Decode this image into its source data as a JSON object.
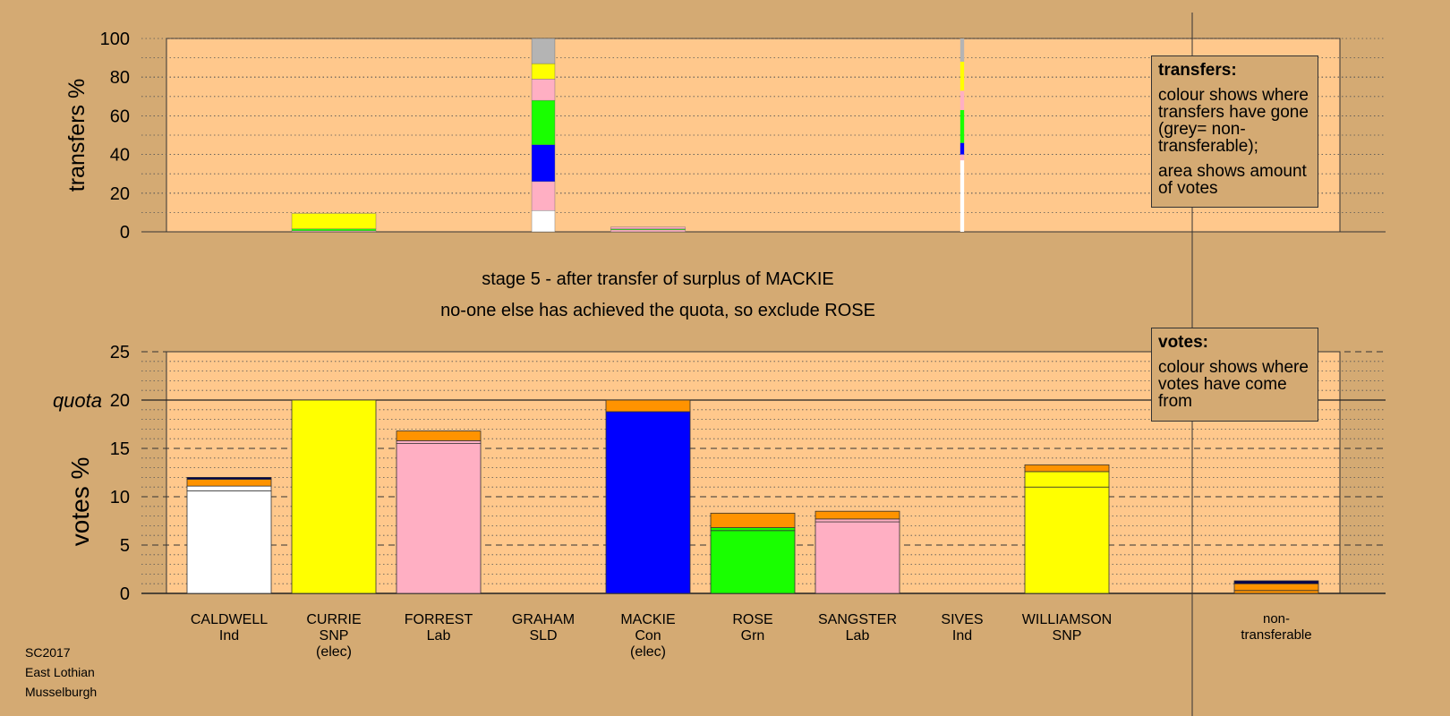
{
  "stage_text": "stage 5 - after transfer of surplus of MACKIE",
  "action_text": "no-one else has achieved the quota, so exclude ROSE",
  "legends": {
    "transfers": {
      "title": "transfers:",
      "line1": "colour shows where transfers have gone (grey= non-transferable);",
      "line2": "area shows amount of votes"
    },
    "votes": {
      "title": "votes:",
      "line1": "colour shows where votes have come from"
    }
  },
  "footer": [
    "SC2017",
    "East Lothian",
    "Musselburgh"
  ],
  "colors": {
    "background": "#d4aa73",
    "plot_bg": "#ffc88c",
    "Ind": "#ffffff",
    "SNP": "#ffff00",
    "Lab": "#ffafc3",
    "Con": "#0000ff",
    "Grn": "#19ff00",
    "transfer": "#ff9300",
    "nontransferable": "#b4b4b4",
    "dark": "#00004d"
  },
  "chart_data": [
    {
      "type": "bar",
      "stacked": true,
      "ylabel": "transfers %",
      "ylim": [
        0,
        100
      ],
      "yticks": [
        0,
        20,
        40,
        60,
        80,
        100
      ],
      "grid": true,
      "note": "transfers from each candidate; bar width shows amount of votes transferred",
      "bars": [
        {
          "candidate": "CURRIE",
          "width_votes_pct": 8.7,
          "segments": [
            {
              "to": "FORREST",
              "value": 0.5,
              "color": "Lab"
            },
            {
              "to": "ROSE",
              "value": 1.0,
              "color": "Grn"
            },
            {
              "to": "WILLIAMSON",
              "value": 8.0,
              "color": "SNP"
            }
          ]
        },
        {
          "candidate": "GRAHAM",
          "width_votes_pct": 2.4,
          "segments": [
            {
              "to": "CALDWELL",
              "value": 11,
              "color": "Ind"
            },
            {
              "to": "FORREST",
              "value": 15,
              "color": "Lab"
            },
            {
              "to": "MACKIE",
              "value": 19,
              "color": "Con"
            },
            {
              "to": "ROSE",
              "value": 23,
              "color": "Grn"
            },
            {
              "to": "SANGSTER",
              "value": 11,
              "color": "Lab"
            },
            {
              "to": "WILLIAMSON",
              "value": 8,
              "color": "SNP"
            },
            {
              "to": "non-transferable",
              "value": 13,
              "color": "nontransferable"
            }
          ]
        },
        {
          "candidate": "MACKIE",
          "width_votes_pct": 7.7,
          "segments": [
            {
              "to": "FORREST",
              "value": 1.0,
              "color": "Lab"
            },
            {
              "to": "ROSE",
              "value": 0.5,
              "color": "Grn"
            },
            {
              "to": "SANGSTER",
              "value": 1.0,
              "color": "Lab"
            }
          ]
        },
        {
          "candidate": "SIVES",
          "width_votes_pct": 0.4,
          "segments": [
            {
              "to": "CALDWELL",
              "value": 37,
              "color": "Ind"
            },
            {
              "to": "FORREST",
              "value": 3,
              "color": "Lab"
            },
            {
              "to": "MACKIE",
              "value": 6,
              "color": "Con"
            },
            {
              "to": "ROSE",
              "value": 17,
              "color": "Grn"
            },
            {
              "to": "SANGSTER",
              "value": 10,
              "color": "Lab"
            },
            {
              "to": "WILLIAMSON",
              "value": 15,
              "color": "SNP"
            },
            {
              "to": "non-transferable",
              "value": 12,
              "color": "nontransferable"
            }
          ]
        }
      ]
    },
    {
      "type": "bar",
      "stacked": true,
      "ylabel": "votes %",
      "ylim": [
        0,
        25
      ],
      "yticks": [
        0,
        5,
        10,
        15,
        20,
        25
      ],
      "quota": 20,
      "quota_label": "quota",
      "grid": true,
      "categories": [
        {
          "name": "CALDWELL",
          "party": "Ind",
          "elected": ""
        },
        {
          "name": "CURRIE",
          "party": "SNP",
          "elected": "(elec)"
        },
        {
          "name": "FORREST",
          "party": "Lab",
          "elected": ""
        },
        {
          "name": "GRAHAM",
          "party": "SLD",
          "elected": ""
        },
        {
          "name": "MACKIE",
          "party": "Con",
          "elected": "(elec)"
        },
        {
          "name": "ROSE",
          "party": "Grn",
          "elected": ""
        },
        {
          "name": "SANGSTER",
          "party": "Lab",
          "elected": ""
        },
        {
          "name": "SIVES",
          "party": "Ind",
          "elected": ""
        },
        {
          "name": "WILLIAMSON",
          "party": "SNP",
          "elected": ""
        }
      ],
      "nontransferable_label": [
        "non-",
        "transferable"
      ],
      "bars": [
        {
          "candidate": "CALDWELL",
          "segments": [
            {
              "value": 10.6,
              "color": "Ind"
            },
            {
              "value": 0.5,
              "color": "Ind"
            },
            {
              "value": 0.7,
              "color": "transfer"
            },
            {
              "value": 0.2,
              "color": "dark"
            }
          ]
        },
        {
          "candidate": "CURRIE",
          "segments": [
            {
              "value": 20.0,
              "color": "SNP"
            }
          ]
        },
        {
          "candidate": "FORREST",
          "segments": [
            {
              "value": 15.5,
              "color": "Lab"
            },
            {
              "value": 0.3,
              "color": "Lab"
            },
            {
              "value": 1.0,
              "color": "transfer"
            }
          ]
        },
        {
          "candidate": "GRAHAM",
          "segments": []
        },
        {
          "candidate": "MACKIE",
          "segments": [
            {
              "value": 18.8,
              "color": "Con"
            },
            {
              "value": 1.2,
              "color": "transfer"
            }
          ]
        },
        {
          "candidate": "ROSE",
          "segments": [
            {
              "value": 6.5,
              "color": "Grn"
            },
            {
              "value": 0.3,
              "color": "Grn"
            },
            {
              "value": 1.5,
              "color": "transfer"
            }
          ]
        },
        {
          "candidate": "SANGSTER",
          "segments": [
            {
              "value": 7.4,
              "color": "Lab"
            },
            {
              "value": 0.3,
              "color": "Lab"
            },
            {
              "value": 0.8,
              "color": "transfer"
            }
          ]
        },
        {
          "candidate": "SIVES",
          "segments": []
        },
        {
          "candidate": "WILLIAMSON",
          "segments": [
            {
              "value": 11.0,
              "color": "SNP"
            },
            {
              "value": 1.6,
              "color": "SNP"
            },
            {
              "value": 0.7,
              "color": "transfer"
            }
          ]
        },
        {
          "candidate": "non-transferable",
          "segments": [
            {
              "value": 0.3,
              "color": "transfer"
            },
            {
              "value": 0.7,
              "color": "transfer"
            },
            {
              "value": 0.3,
              "color": "dark"
            }
          ]
        }
      ]
    }
  ]
}
